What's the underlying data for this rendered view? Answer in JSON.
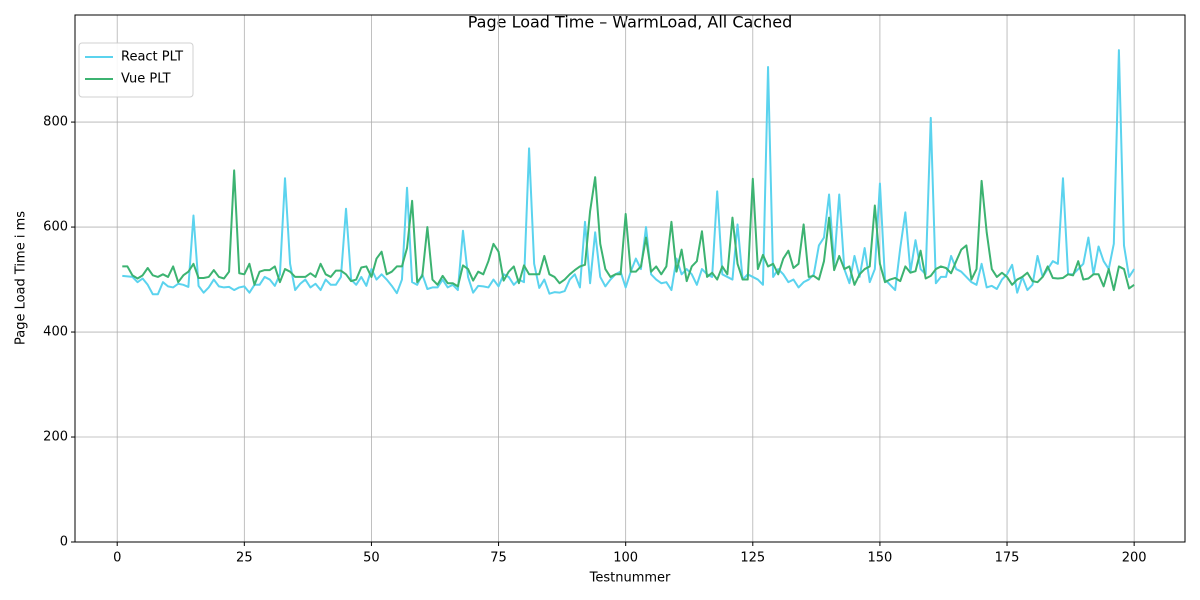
{
  "chart_data": {
    "type": "line",
    "title": "Page Load Time – WarmLoad, All Cached",
    "x_label": "Testnummer",
    "y_label": "Page Load Time i ms",
    "x": [
      1,
      2,
      3,
      4,
      5,
      6,
      7,
      8,
      9,
      10,
      11,
      12,
      13,
      14,
      15,
      16,
      17,
      18,
      19,
      20,
      21,
      22,
      23,
      24,
      25,
      26,
      27,
      28,
      29,
      30,
      31,
      32,
      33,
      34,
      35,
      36,
      37,
      38,
      39,
      40,
      41,
      42,
      43,
      44,
      45,
      46,
      47,
      48,
      49,
      50,
      51,
      52,
      53,
      54,
      55,
      56,
      57,
      58,
      59,
      60,
      61,
      62,
      63,
      64,
      65,
      66,
      67,
      68,
      69,
      70,
      71,
      72,
      73,
      74,
      75,
      76,
      77,
      78,
      79,
      80,
      81,
      82,
      83,
      84,
      85,
      86,
      87,
      88,
      89,
      90,
      91,
      92,
      93,
      94,
      95,
      96,
      97,
      98,
      99,
      100,
      101,
      102,
      103,
      104,
      105,
      106,
      107,
      108,
      109,
      110,
      111,
      112,
      113,
      114,
      115,
      116,
      117,
      118,
      119,
      120,
      121,
      122,
      123,
      124,
      125,
      126,
      127,
      128,
      129,
      130,
      131,
      132,
      133,
      134,
      135,
      136,
      137,
      138,
      139,
      140,
      141,
      142,
      143,
      144,
      145,
      146,
      147,
      148,
      149,
      150,
      151,
      152,
      153,
      154,
      155,
      156,
      157,
      158,
      159,
      160,
      161,
      162,
      163,
      164,
      165,
      166,
      167,
      168,
      169,
      170,
      171,
      172,
      173,
      174,
      175,
      176,
      177,
      178,
      179,
      180,
      181,
      182,
      183,
      184,
      185,
      186,
      187,
      188,
      189,
      190,
      191,
      192,
      193,
      194,
      195,
      196,
      197,
      198,
      199,
      200
    ],
    "series": [
      {
        "name": "React PLT",
        "color": "#5bd3ee",
        "values": [
          507,
          506,
          505,
          495,
          502,
          490,
          472,
          472,
          495,
          487,
          485,
          492,
          490,
          486,
          622,
          488,
          475,
          485,
          500,
          487,
          485,
          486,
          480,
          485,
          487,
          475,
          490,
          490,
          505,
          500,
          488,
          510,
          693,
          530,
          480,
          492,
          500,
          485,
          492,
          480,
          500,
          490,
          490,
          505,
          635,
          500,
          490,
          505,
          488,
          520,
          500,
          510,
          500,
          488,
          474,
          500,
          675,
          495,
          490,
          510,
          482,
          485,
          485,
          500,
          485,
          490,
          480,
          593,
          505,
          475,
          488,
          487,
          485,
          500,
          487,
          510,
          505,
          490,
          500,
          495,
          750,
          530,
          484,
          500,
          473,
          476,
          475,
          478,
          500,
          510,
          485,
          610,
          493,
          590,
          505,
          487,
          500,
          510,
          515,
          485,
          515,
          540,
          520,
          600,
          510,
          500,
          493,
          495,
          480,
          540,
          510,
          520,
          510,
          490,
          520,
          510,
          505,
          668,
          510,
          505,
          500,
          605,
          500,
          510,
          505,
          500,
          490,
          905,
          505,
          520,
          510,
          495,
          500,
          485,
          495,
          500,
          510,
          565,
          580,
          662,
          530,
          662,
          520,
          493,
          545,
          505,
          560,
          495,
          520,
          683,
          500,
          490,
          480,
          560,
          628,
          515,
          575,
          520,
          510,
          808,
          493,
          505,
          505,
          545,
          520,
          515,
          505,
          495,
          490,
          530,
          485,
          488,
          482,
          500,
          510,
          528,
          475,
          505,
          480,
          490,
          545,
          505,
          520,
          535,
          530,
          693,
          510,
          510,
          520,
          530,
          580,
          510,
          563,
          535,
          520,
          568,
          937,
          565,
          505,
          520
        ]
      },
      {
        "name": "Vue PLT",
        "color": "#3cb371",
        "values": [
          525,
          525,
          508,
          502,
          508,
          522,
          508,
          505,
          510,
          505,
          525,
          495,
          508,
          515,
          530,
          503,
          503,
          505,
          518,
          505,
          502,
          515,
          708,
          512,
          510,
          530,
          490,
          515,
          518,
          518,
          525,
          495,
          520,
          515,
          505,
          505,
          505,
          512,
          505,
          530,
          510,
          505,
          517,
          517,
          510,
          497,
          500,
          523,
          525,
          505,
          540,
          553,
          510,
          515,
          525,
          525,
          560,
          650,
          495,
          507,
          600,
          500,
          490,
          507,
          493,
          493,
          487,
          527,
          520,
          498,
          515,
          510,
          535,
          568,
          553,
          498,
          515,
          525,
          493,
          527,
          510,
          510,
          510,
          545,
          510,
          505,
          493,
          500,
          510,
          518,
          525,
          528,
          630,
          695,
          568,
          520,
          505,
          510,
          510,
          625,
          515,
          515,
          525,
          580,
          515,
          525,
          510,
          525,
          610,
          515,
          557,
          497,
          525,
          535,
          592,
          505,
          513,
          500,
          525,
          510,
          618,
          530,
          500,
          500,
          692,
          520,
          547,
          525,
          530,
          510,
          540,
          555,
          522,
          530,
          605,
          505,
          507,
          500,
          535,
          618,
          518,
          545,
          520,
          525,
          490,
          510,
          520,
          525,
          641,
          530,
          495,
          500,
          503,
          497,
          525,
          513,
          516,
          555,
          502,
          507,
          520,
          525,
          522,
          512,
          535,
          557,
          565,
          500,
          520,
          688,
          590,
          520,
          505,
          513,
          505,
          490,
          500,
          505,
          513,
          497,
          495,
          505,
          525,
          503,
          502,
          503,
          510,
          508,
          535,
          500,
          502,
          510,
          510,
          487,
          520,
          480,
          525,
          520,
          483,
          490
        ]
      }
    ],
    "xlim": [
      -8.3,
      210
    ],
    "ylim": [
      0,
      1004
    ],
    "xticks": [
      0,
      25,
      50,
      75,
      100,
      125,
      150,
      175,
      200
    ],
    "yticks": [
      0,
      200,
      400,
      600,
      800
    ],
    "grid": true,
    "legend": "upper-left"
  }
}
